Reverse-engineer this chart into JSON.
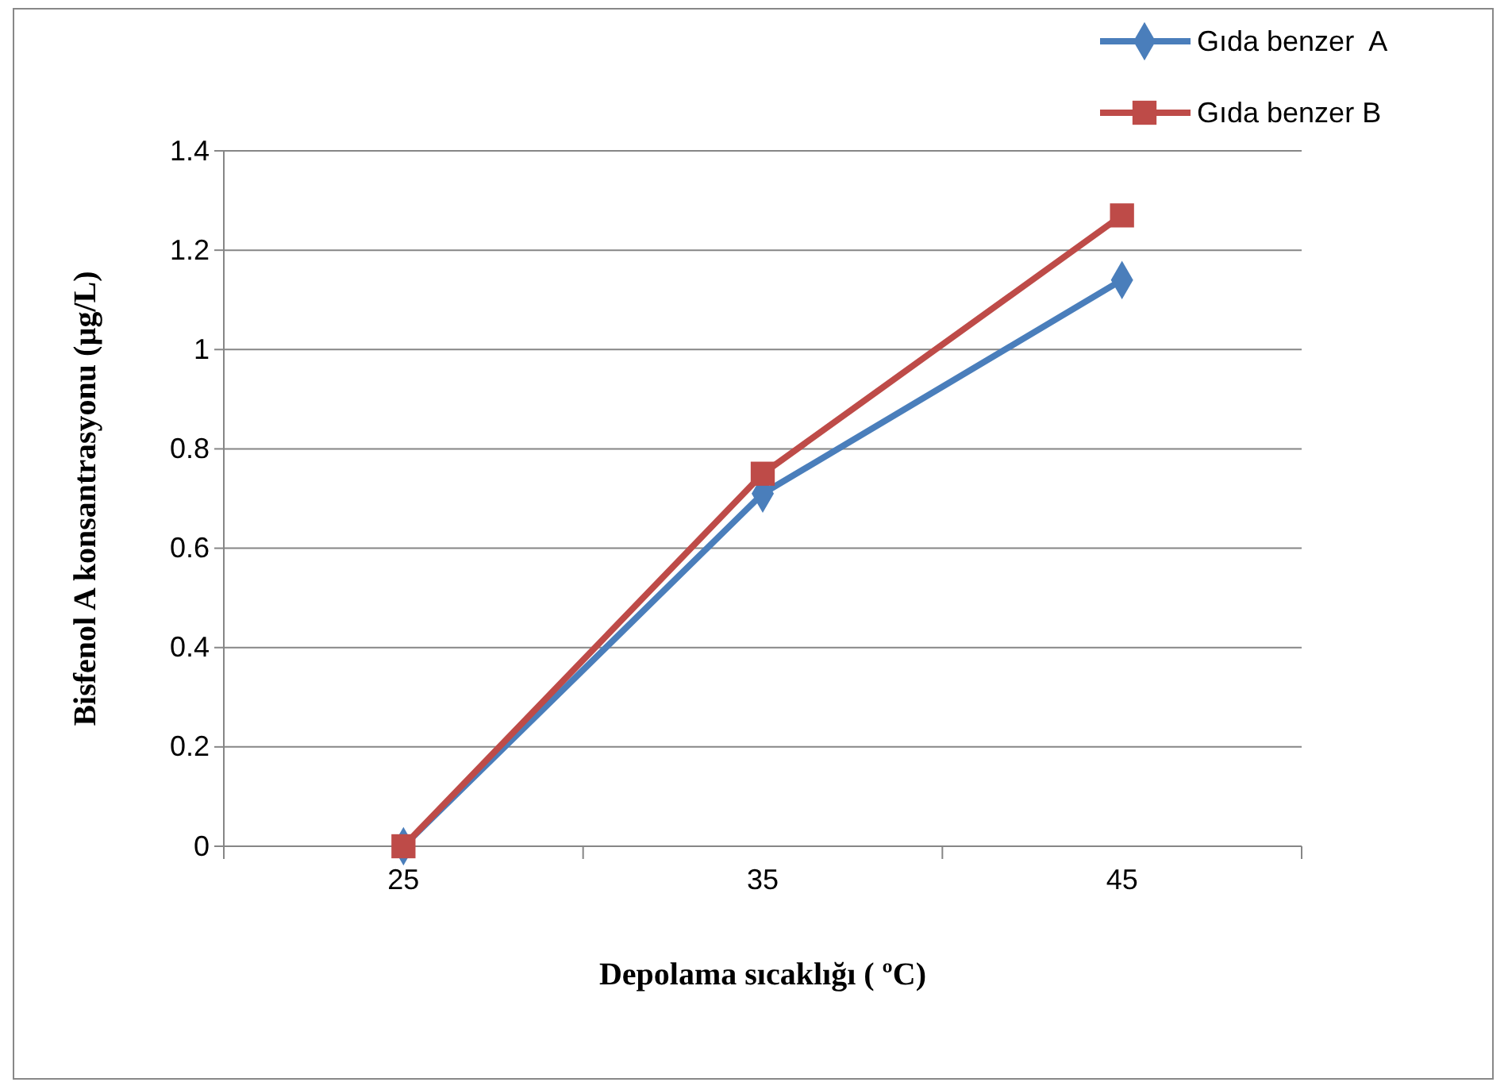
{
  "chart_data": {
    "type": "line",
    "xlabel": "Depolama sıcaklığı ( ºC)",
    "ylabel": "Bisfenol A konsantrasyonu  (µg/L)",
    "categories": [
      "25",
      "35",
      "45"
    ],
    "ylim": [
      0,
      1.4
    ],
    "yticks": [
      0,
      0.2,
      0.4,
      0.6,
      0.8,
      1,
      1.2,
      1.4
    ],
    "grid": "y",
    "legend": "top right",
    "line_style": "solid",
    "series": [
      {
        "name": "Gıda benzer  A",
        "color": "#4a7ebb",
        "marker": "diamond",
        "values": [
          0,
          0.71,
          1.14
        ]
      },
      {
        "name": "Gıda benzer B",
        "color": "#be4b48",
        "marker": "square",
        "values": [
          0,
          0.75,
          1.27
        ]
      }
    ]
  }
}
